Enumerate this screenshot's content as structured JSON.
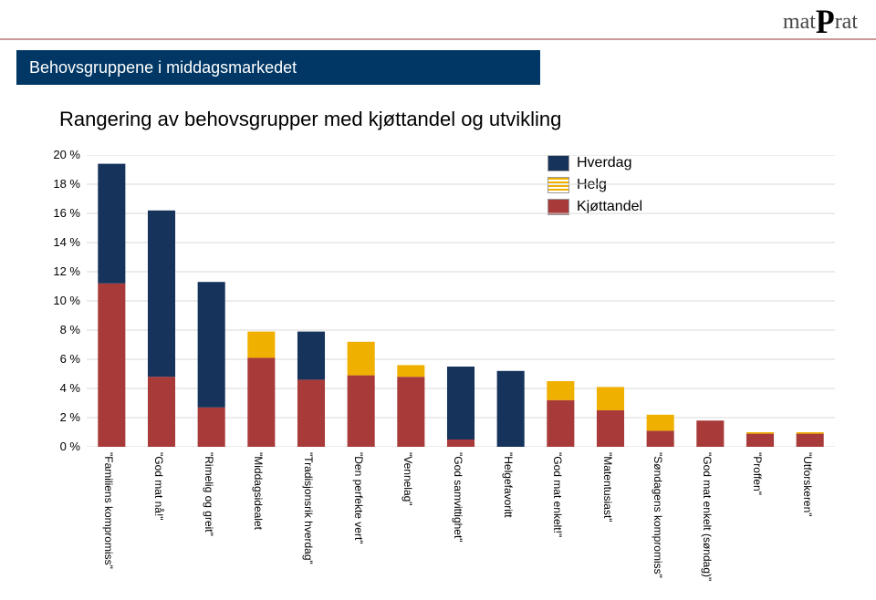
{
  "logo_text_a": "mat",
  "logo_text_p": "P",
  "logo_text_b": "rat",
  "titlebar": "Behovsgruppene i middagsmarkedet",
  "subtitle": "Rangering av behovsgrupper med kjøttandel og utvikling",
  "legend": {
    "hverdag": "Hverdag",
    "helg": "Helg",
    "kjott": "Kjøttandel"
  },
  "chart": {
    "type": "stacked-bar",
    "ylim": [
      0,
      20
    ],
    "ytick_step": 2,
    "ytick_suffix": " %",
    "background_color": "#ffffff",
    "grid_color": "#d9d9d9",
    "axis_fontsize": 13,
    "xlabel_fontsize": 12,
    "legend_fontsize": 16,
    "bar_width_ratio": 0.55,
    "colors": {
      "kjott": "#a83a3a",
      "helg": "#f0b000",
      "hverdag": "#16335b"
    },
    "categories": [
      "\"Familiens kompromiss\"",
      "\"God mat nå!\"",
      "\"Rimelig og greit\"",
      "\"Middagsidealet",
      "\"Tradisjonsrik hverdag\"",
      "\"Den perfekte vert\"",
      "\"Vennelag\"",
      "\"God samvittighet\"",
      "\"Helgefavoritt",
      "\"God mat enkelt!\"",
      "\"Matentusiast\"",
      "\"Søndagens kompromiss\"",
      "\"God mat enkelt (søndag)\"",
      "\"Proffen\"",
      "\"Utforskeren\""
    ],
    "series": {
      "kjott": [
        11.2,
        4.8,
        2.7,
        6.1,
        4.6,
        4.9,
        4.8,
        0.5,
        0.0,
        3.2,
        2.5,
        1.1,
        1.8,
        0.9,
        0.9
      ],
      "helg": [
        0.0,
        0.0,
        0.0,
        1.8,
        0.0,
        2.3,
        0.8,
        0.0,
        0.0,
        1.3,
        1.6,
        1.1,
        0.0,
        0.1,
        0.1
      ],
      "hverdag": [
        8.2,
        11.4,
        8.6,
        0.0,
        3.3,
        0.0,
        0.0,
        5.0,
        5.2,
        0.0,
        0.0,
        0.0,
        0.0,
        0.0,
        0.0
      ]
    },
    "stack_order": [
      "kjott",
      "helg",
      "hverdag"
    ]
  }
}
